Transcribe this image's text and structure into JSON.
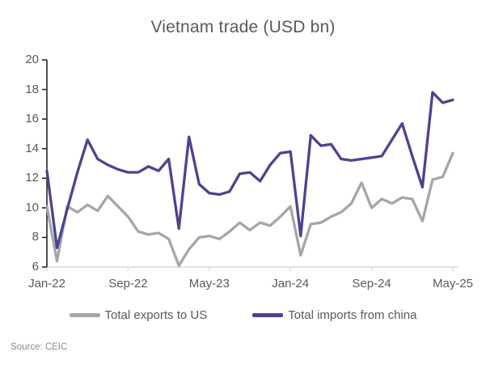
{
  "title": "Vietnam trade (USD bn)",
  "source": "Source: CEIC",
  "colors": {
    "exports_us": "#a6a6a6",
    "imports_china": "#4a4490",
    "text": "#595959",
    "y_axis_line": "#262626",
    "x_axis_line": "#d9d9d9"
  },
  "legend": [
    {
      "label": "Total exports to US",
      "color": "#a6a6a6"
    },
    {
      "label": "Total imports from china",
      "color": "#4a4490"
    }
  ],
  "chart_data": {
    "type": "line",
    "title": "Vietnam trade (USD bn)",
    "xlabel": "",
    "ylabel": "",
    "ylim": [
      6,
      20
    ],
    "y_ticks": [
      20,
      18,
      16,
      14,
      12,
      10,
      8,
      6
    ],
    "grid": false,
    "legend_position": "bottom",
    "x": [
      "Jan-22",
      "Feb-22",
      "Mar-22",
      "Apr-22",
      "May-22",
      "Jun-22",
      "Jul-22",
      "Aug-22",
      "Sep-22",
      "Oct-22",
      "Nov-22",
      "Dec-22",
      "Jan-23",
      "Feb-23",
      "Mar-23",
      "Apr-23",
      "May-23",
      "Jun-23",
      "Jul-23",
      "Aug-23",
      "Sep-23",
      "Oct-23",
      "Nov-23",
      "Dec-23",
      "Jan-24",
      "Feb-24",
      "Mar-24",
      "Apr-24",
      "May-24",
      "Jun-24",
      "Jul-24",
      "Aug-24",
      "Sep-24",
      "Oct-24",
      "Nov-24",
      "Dec-24",
      "Jan-25",
      "Feb-25",
      "Mar-25",
      "Apr-25",
      "May-25"
    ],
    "x_tick_indices": [
      0,
      8,
      16,
      24,
      32,
      40
    ],
    "x_tick_labels": [
      "Jan-22",
      "Sep-22",
      "May-23",
      "Jan-24",
      "Sep-24",
      "May-25"
    ],
    "series": [
      {
        "name": "Total exports to US",
        "color": "#a6a6a6",
        "values": [
          10.1,
          6.4,
          10.1,
          9.7,
          10.2,
          9.8,
          10.8,
          10.1,
          9.4,
          8.4,
          8.2,
          8.3,
          7.9,
          6.1,
          7.2,
          8.0,
          8.1,
          7.9,
          8.4,
          9.0,
          8.5,
          9.0,
          8.8,
          9.4,
          10.1,
          6.8,
          8.9,
          9.0,
          9.4,
          9.7,
          10.3,
          11.7,
          10.0,
          10.6,
          10.3,
          10.7,
          10.6,
          9.1,
          11.9,
          12.1,
          13.7
        ]
      },
      {
        "name": "Total imports from china",
        "color": "#4a4490",
        "values": [
          12.5,
          7.3,
          9.9,
          12.4,
          14.6,
          13.3,
          12.9,
          12.6,
          12.4,
          12.4,
          12.8,
          12.5,
          13.3,
          8.6,
          14.8,
          11.6,
          11.0,
          10.9,
          11.1,
          12.3,
          12.4,
          11.8,
          12.9,
          13.7,
          13.8,
          8.1,
          14.9,
          14.2,
          14.3,
          13.3,
          13.2,
          13.3,
          13.4,
          13.5,
          14.6,
          15.7,
          13.5,
          11.4,
          17.8,
          17.1,
          17.3
        ]
      }
    ]
  }
}
